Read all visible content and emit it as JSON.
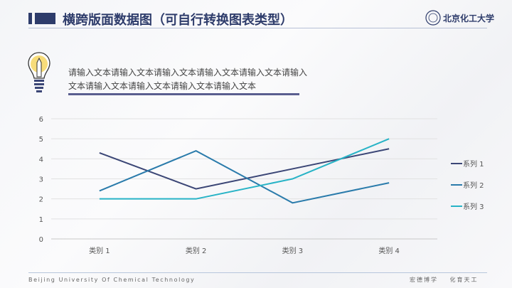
{
  "header": {
    "title": "横跨版面数据图（可自行转换图表类型）",
    "logo_text": "北京化工大学"
  },
  "description": "请输入文本请输入文本请输入文本请输入文本请输入文本请输入文本请输入文本请输入文本请输入文本请输入文本",
  "footer": {
    "english": "Beijing University Of Chemical Technology",
    "motto": "宏德博学 化育天工"
  },
  "icons": {
    "bulb": "lightbulb-pencil-icon",
    "logo": "university-seal-icon"
  },
  "chart_data": {
    "type": "line",
    "categories": [
      "类别 1",
      "类别 2",
      "类别 3",
      "类别 4"
    ],
    "ylim": [
      0,
      6
    ],
    "yticks": [
      "0",
      "1",
      "2",
      "3",
      "4",
      "5",
      "6"
    ],
    "grid": true,
    "legend": "right",
    "series": [
      {
        "name": "系列 1",
        "values": [
          4.3,
          2.5,
          3.5,
          4.5
        ],
        "color": "#3b4676"
      },
      {
        "name": "系列 2",
        "values": [
          2.4,
          4.4,
          1.8,
          2.8
        ],
        "color": "#2a7bab"
      },
      {
        "name": "系列 3",
        "values": [
          2.0,
          2.0,
          3.0,
          5.0
        ],
        "color": "#27b3c6"
      }
    ]
  }
}
